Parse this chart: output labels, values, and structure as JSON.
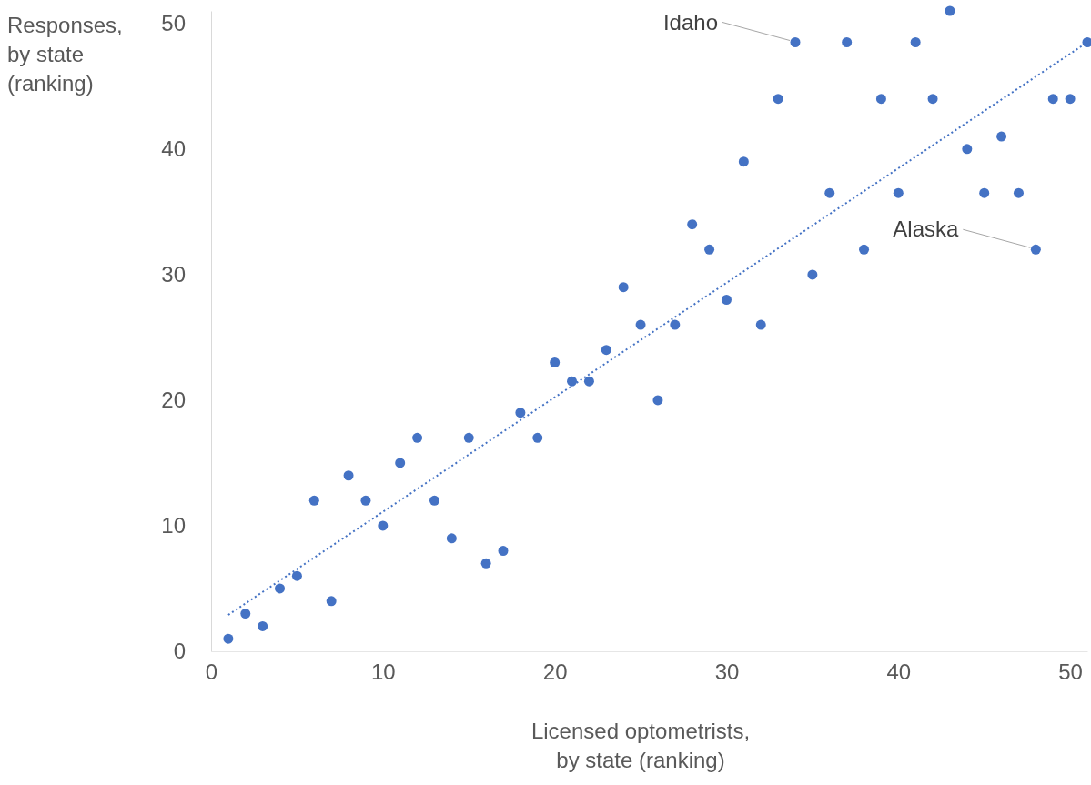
{
  "chart_data": {
    "type": "scatter",
    "xlabel": "Licensed optometrists,\nby state (ranking)",
    "ylabel": "Responses,\nby state\n(ranking)",
    "xlim": [
      0,
      51
    ],
    "ylim": [
      0,
      51
    ],
    "xticks": [
      0,
      10,
      20,
      30,
      40,
      50
    ],
    "yticks": [
      0,
      10,
      20,
      30,
      40,
      50
    ],
    "marker": "circle",
    "series": [
      {
        "color": "#4472c4",
        "x": [
          1,
          2,
          3,
          4,
          5,
          6,
          7,
          8,
          9,
          10,
          11,
          12,
          13,
          14,
          15,
          16,
          17,
          18,
          19,
          20,
          21,
          22,
          23,
          24,
          25,
          26,
          27,
          28,
          29,
          30,
          31,
          32,
          33,
          34,
          35,
          36,
          37,
          38,
          39,
          40,
          41,
          42,
          43,
          44,
          45,
          46,
          47,
          48,
          49,
          50,
          51
        ],
        "values": [
          1,
          3,
          2,
          5,
          6,
          12,
          4,
          14,
          12,
          10,
          15,
          17,
          12,
          9,
          17,
          7,
          8,
          19,
          17,
          23,
          21.5,
          21.5,
          24,
          29,
          26,
          20,
          26,
          34,
          32,
          28,
          39,
          26,
          44,
          48.5,
          30,
          36.5,
          48.5,
          32,
          44,
          36.5,
          48.5,
          44,
          51,
          40,
          36.5,
          41,
          36.5,
          32,
          44,
          44,
          48.5
        ]
      },
      {
        "type": "line",
        "color": "#4472c4",
        "line_style": "dotted",
        "marker": "none",
        "x": [
          1,
          51
        ],
        "values": [
          2.9,
          48.5
        ]
      }
    ],
    "annotations": [
      {
        "text": "Idaho",
        "x": 34,
        "y": 48.5
      },
      {
        "text": "Alaska",
        "x": 48,
        "y": 32
      }
    ]
  }
}
